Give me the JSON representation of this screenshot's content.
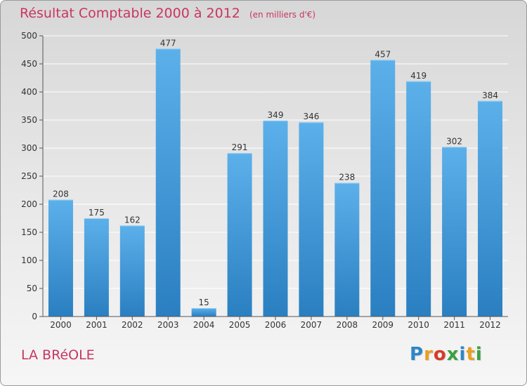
{
  "title": "Résultat Comptable 2000 à 2012",
  "subtitle": "(en milliers d'€)",
  "commune": "LA BRéOLE",
  "logo": {
    "letters": [
      "P",
      "r",
      "o",
      "x",
      "i",
      "t",
      "i"
    ],
    "colors": [
      "#2e86c8",
      "#e8a020",
      "#d83a2a",
      "#3aa040",
      "#2e86c8",
      "#e8a020",
      "#3aa040"
    ]
  },
  "colors": {
    "title": "#c8365e",
    "bar_top": "#5cb0ea",
    "bar_bottom": "#2a7fc1",
    "axis": "#555555",
    "grid": "#ffffff"
  },
  "chart_data": {
    "type": "bar",
    "categories": [
      "2000",
      "2001",
      "2002",
      "2003",
      "2004",
      "2005",
      "2006",
      "2007",
      "2008",
      "2009",
      "2010",
      "2011",
      "2012"
    ],
    "values": [
      208,
      175,
      162,
      477,
      15,
      291,
      349,
      346,
      238,
      457,
      419,
      302,
      384
    ],
    "data_labels": [
      "208",
      "175",
      "162",
      "477",
      "15",
      "291",
      "349",
      "346",
      "238",
      "457",
      "419",
      "302",
      "384"
    ],
    "title": "Résultat Comptable 2000 à 2012",
    "xlabel": "",
    "ylabel": "",
    "ylim": [
      0,
      500
    ],
    "yticks": [
      0,
      50,
      100,
      150,
      200,
      250,
      300,
      350,
      400,
      450,
      500
    ],
    "grid": true,
    "legend": "none"
  }
}
